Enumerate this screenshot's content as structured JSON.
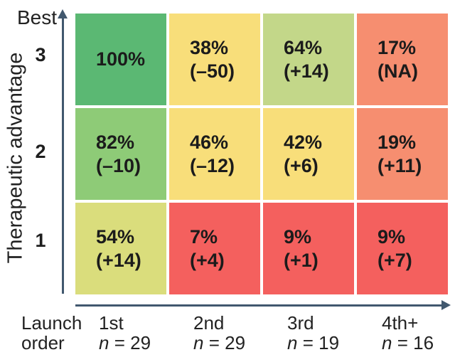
{
  "chart_data": {
    "type": "heatmap",
    "title": "",
    "legend": "none",
    "grid": "off",
    "y_axis": {
      "title": "Therapeutic advantage",
      "top_label": "Best",
      "tick_labels": [
        "3",
        "2",
        "1"
      ]
    },
    "x_axis": {
      "title": "Launch order",
      "columns": [
        {
          "label": "1st",
          "n_var": "n",
          "n_rest": "= 29",
          "sample_size": 29
        },
        {
          "label": "2nd",
          "n_var": "n",
          "n_rest": "= 29",
          "sample_size": 29
        },
        {
          "label": "3rd",
          "n_var": "n",
          "n_rest": "= 19",
          "sample_size": 19
        },
        {
          "label": "4th+",
          "n_var": "n",
          "n_rest": "= 16",
          "sample_size": 16
        }
      ]
    },
    "colors": {
      "axis": "#41586e",
      "text": "#1e1e1e",
      "green_dark": "#5bb873",
      "green_light": "#8ecb77",
      "yellow_green": "#c3d789",
      "olive": "#dadd7c",
      "yellow": "#f8de7a",
      "salmon": "#f68e70",
      "red": "#f4605e"
    },
    "cells": [
      {
        "row": "3",
        "col": "1st",
        "value": "100%",
        "delta": "",
        "value_num": 100,
        "delta_num": null,
        "color": "#5bb873"
      },
      {
        "row": "3",
        "col": "2nd",
        "value": "38%",
        "delta": "(–50)",
        "value_num": 38,
        "delta_num": -50,
        "color": "#f8de7a"
      },
      {
        "row": "3",
        "col": "3rd",
        "value": "64%",
        "delta": "(+14)",
        "value_num": 64,
        "delta_num": 14,
        "color": "#c3d789"
      },
      {
        "row": "3",
        "col": "4th+",
        "value": "17%",
        "delta": "(NA)",
        "value_num": 17,
        "delta_num": null,
        "color": "#f68e70"
      },
      {
        "row": "2",
        "col": "1st",
        "value": "82%",
        "delta": "(–10)",
        "value_num": 82,
        "delta_num": -10,
        "color": "#8ecb77"
      },
      {
        "row": "2",
        "col": "2nd",
        "value": "46%",
        "delta": "(–12)",
        "value_num": 46,
        "delta_num": -12,
        "color": "#f8de7a"
      },
      {
        "row": "2",
        "col": "3rd",
        "value": "42%",
        "delta": "(+6)",
        "value_num": 42,
        "delta_num": 6,
        "color": "#f8de7a"
      },
      {
        "row": "2",
        "col": "4th+",
        "value": "19%",
        "delta": "(+11)",
        "value_num": 19,
        "delta_num": 11,
        "color": "#f68e70"
      },
      {
        "row": "1",
        "col": "1st",
        "value": "54%",
        "delta": "(+14)",
        "value_num": 54,
        "delta_num": 14,
        "color": "#dadd7c"
      },
      {
        "row": "1",
        "col": "2nd",
        "value": "7%",
        "delta": "(+4)",
        "value_num": 7,
        "delta_num": 4,
        "color": "#f4605e"
      },
      {
        "row": "1",
        "col": "3rd",
        "value": "9%",
        "delta": "(+1)",
        "value_num": 9,
        "delta_num": 1,
        "color": "#f4605e"
      },
      {
        "row": "1",
        "col": "4th+",
        "value": "9%",
        "delta": "(+7)",
        "value_num": 9,
        "delta_num": 7,
        "color": "#f4605e"
      }
    ]
  }
}
